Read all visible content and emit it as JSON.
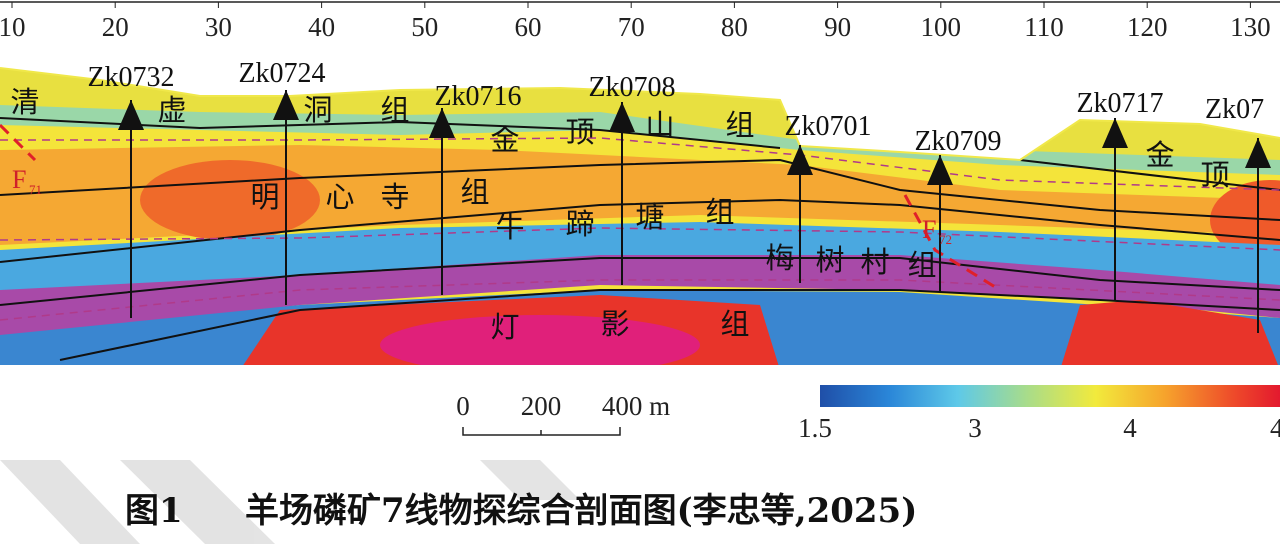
{
  "top_axis": {
    "ticks": [
      10,
      20,
      30,
      40,
      50,
      60,
      70,
      80,
      90,
      100,
      110,
      120,
      130
    ]
  },
  "wells": [
    {
      "label": "Zk0732"
    },
    {
      "label": "Zk0724"
    },
    {
      "label": "Zk0716"
    },
    {
      "label": "Zk0708"
    },
    {
      "label": "Zk0701"
    },
    {
      "label": "Zk0709"
    },
    {
      "label": "Zk0717"
    },
    {
      "label": "Zk07"
    }
  ],
  "formations": [
    {
      "chars": [
        "清",
        "虚",
        "洞",
        "组"
      ]
    },
    {
      "chars": [
        "金",
        "顶",
        "山",
        "组"
      ]
    },
    {
      "chars": [
        "明",
        "心",
        "寺",
        "组"
      ]
    },
    {
      "chars": [
        "牛",
        "蹄",
        "塘",
        "组"
      ]
    },
    {
      "chars": [
        "梅",
        "树",
        "村",
        "组"
      ]
    },
    {
      "chars": [
        "灯",
        "影",
        "组"
      ]
    },
    {
      "chars": [
        "金",
        "顶"
      ]
    }
  ],
  "faults": [
    {
      "letter": "F",
      "subscript": "71"
    },
    {
      "letter": "F",
      "subscript": "72"
    }
  ],
  "scale_bar": {
    "labels": [
      "0",
      "200",
      "400 m"
    ]
  },
  "colorbar": {
    "labels": [
      "1.5",
      "3",
      "4",
      "4"
    ]
  },
  "caption": {
    "figure": "图1",
    "text": "羊场磷矿7线物探综合剖面图(李忠等,2025)"
  }
}
